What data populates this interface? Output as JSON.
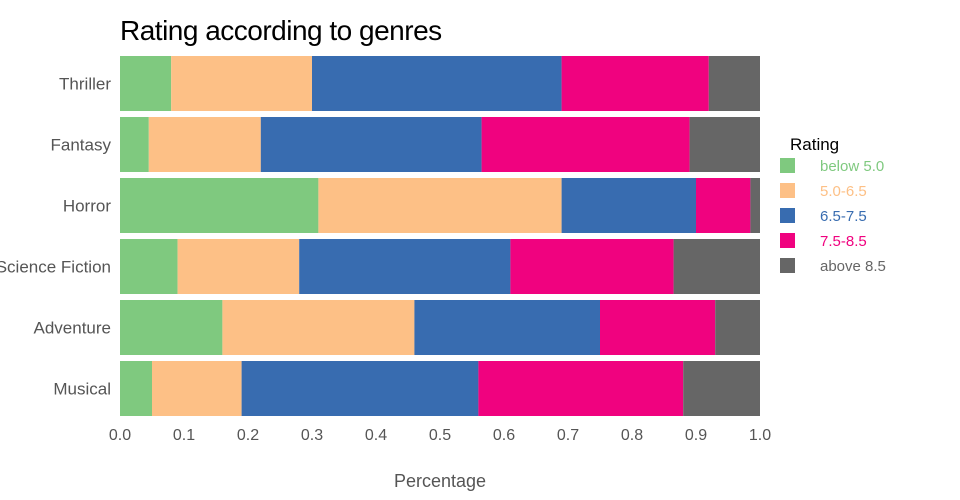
{
  "chart_data": {
    "type": "bar",
    "orientation": "horizontal",
    "stacked": true,
    "title": "Rating according to genres",
    "xlabel": "Percentage",
    "ylabel": "",
    "xlim": [
      0,
      1
    ],
    "x_ticks": [
      "0.0",
      "0.1",
      "0.2",
      "0.3",
      "0.4",
      "0.5",
      "0.6",
      "0.7",
      "0.8",
      "0.9",
      "1.0"
    ],
    "grid": false,
    "legend": {
      "title": "Rating",
      "placement": "right"
    },
    "categories": [
      "Thriller",
      "Fantasy",
      "Horror",
      "Science Fiction",
      "Adventure",
      "Musical"
    ],
    "series": [
      {
        "name": "below 5.0",
        "color": "#7fc97f",
        "values": [
          0.08,
          0.045,
          0.31,
          0.09,
          0.16,
          0.05
        ]
      },
      {
        "name": "5.0-6.5",
        "color": "#fdc086",
        "values": [
          0.22,
          0.175,
          0.38,
          0.19,
          0.3,
          0.14
        ]
      },
      {
        "name": "6.5-7.5",
        "color": "#386cb0",
        "values": [
          0.39,
          0.345,
          0.21,
          0.33,
          0.29,
          0.37
        ]
      },
      {
        "name": "7.5-8.5",
        "color": "#f0027f",
        "values": [
          0.23,
          0.325,
          0.085,
          0.255,
          0.18,
          0.32
        ]
      },
      {
        "name": "above 8.5",
        "color": "#666666",
        "values": [
          0.08,
          0.11,
          0.015,
          0.135,
          0.07,
          0.12
        ]
      }
    ]
  }
}
